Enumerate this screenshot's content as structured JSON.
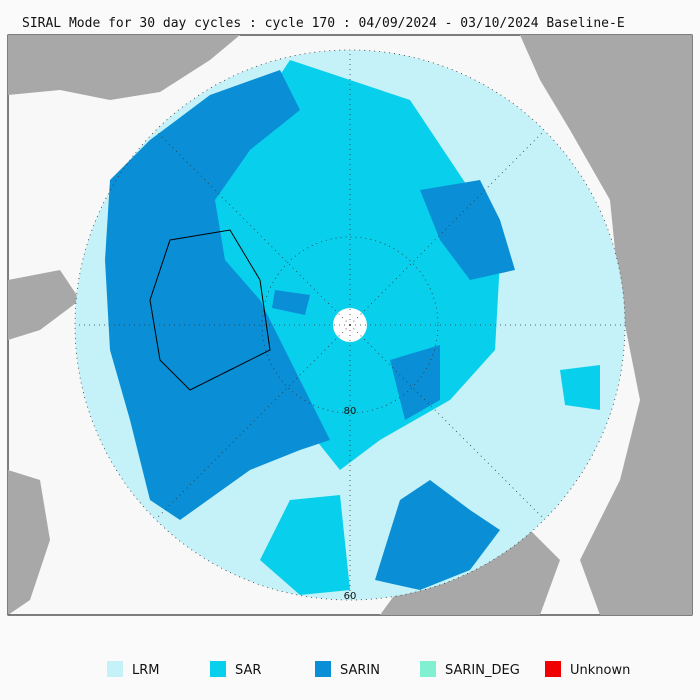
{
  "title": "SIRAL Mode for 30 day cycles : cycle 170 : 04/09/2024 - 03/10/2024 Baseline-E",
  "map_labels": [
    "80",
    "60"
  ],
  "legend": [
    {
      "label": "LRM",
      "color": "#c4f2f8"
    },
    {
      "label": "SAR",
      "color": "#08d0ec"
    },
    {
      "label": "SARIN",
      "color": "#0a8fd6"
    },
    {
      "label": "SARIN_DEG",
      "color": "#80f0d0"
    },
    {
      "label": "Unknown",
      "color": "#f00000"
    }
  ]
}
